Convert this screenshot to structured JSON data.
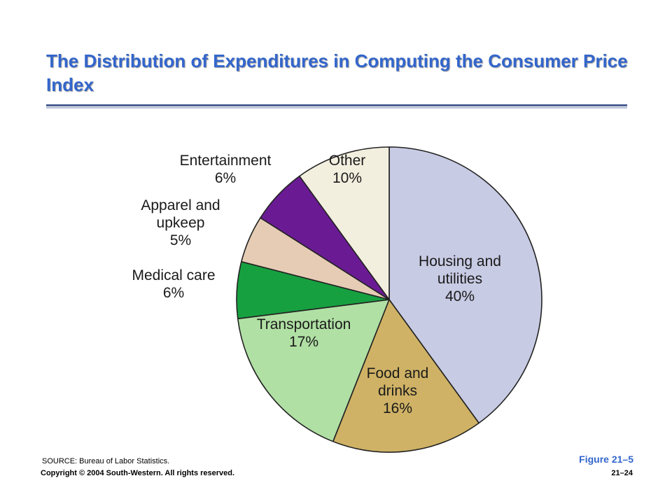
{
  "slide": {
    "title": "The Distribution of Expenditures in Computing the Consumer Price Index",
    "source": "SOURCE: Bureau of Labor Statistics.",
    "figure": "Figure 21–5",
    "copyright": "Copyright © 2004 South-Western. All rights reserved.",
    "page": "21–24"
  },
  "chart_data": {
    "type": "pie",
    "title": "The Distribution of Expenditures in Computing the Consumer Price Index",
    "slices": [
      {
        "label_lines": [
          "Housing and",
          "utilities",
          "40%"
        ],
        "value": 40,
        "color": "#c8cbe4"
      },
      {
        "label_lines": [
          "Food and",
          "drinks",
          "16%"
        ],
        "value": 16,
        "color": "#cfb265"
      },
      {
        "label_lines": [
          "Transportation",
          "17%"
        ],
        "value": 17,
        "color": "#b0e0a4"
      },
      {
        "label_lines": [
          "Medical care",
          "6%"
        ],
        "value": 6,
        "color": "#17a040"
      },
      {
        "label_lines": [
          "Apparel and",
          "upkeep",
          "5%"
        ],
        "value": 5,
        "color": "#e6ccb5"
      },
      {
        "label_lines": [
          "Entertainment",
          "6%"
        ],
        "value": 6,
        "color": "#6a1b94"
      },
      {
        "label_lines": [
          "Other",
          "10%"
        ],
        "value": 10,
        "color": "#f3efdf"
      }
    ]
  }
}
